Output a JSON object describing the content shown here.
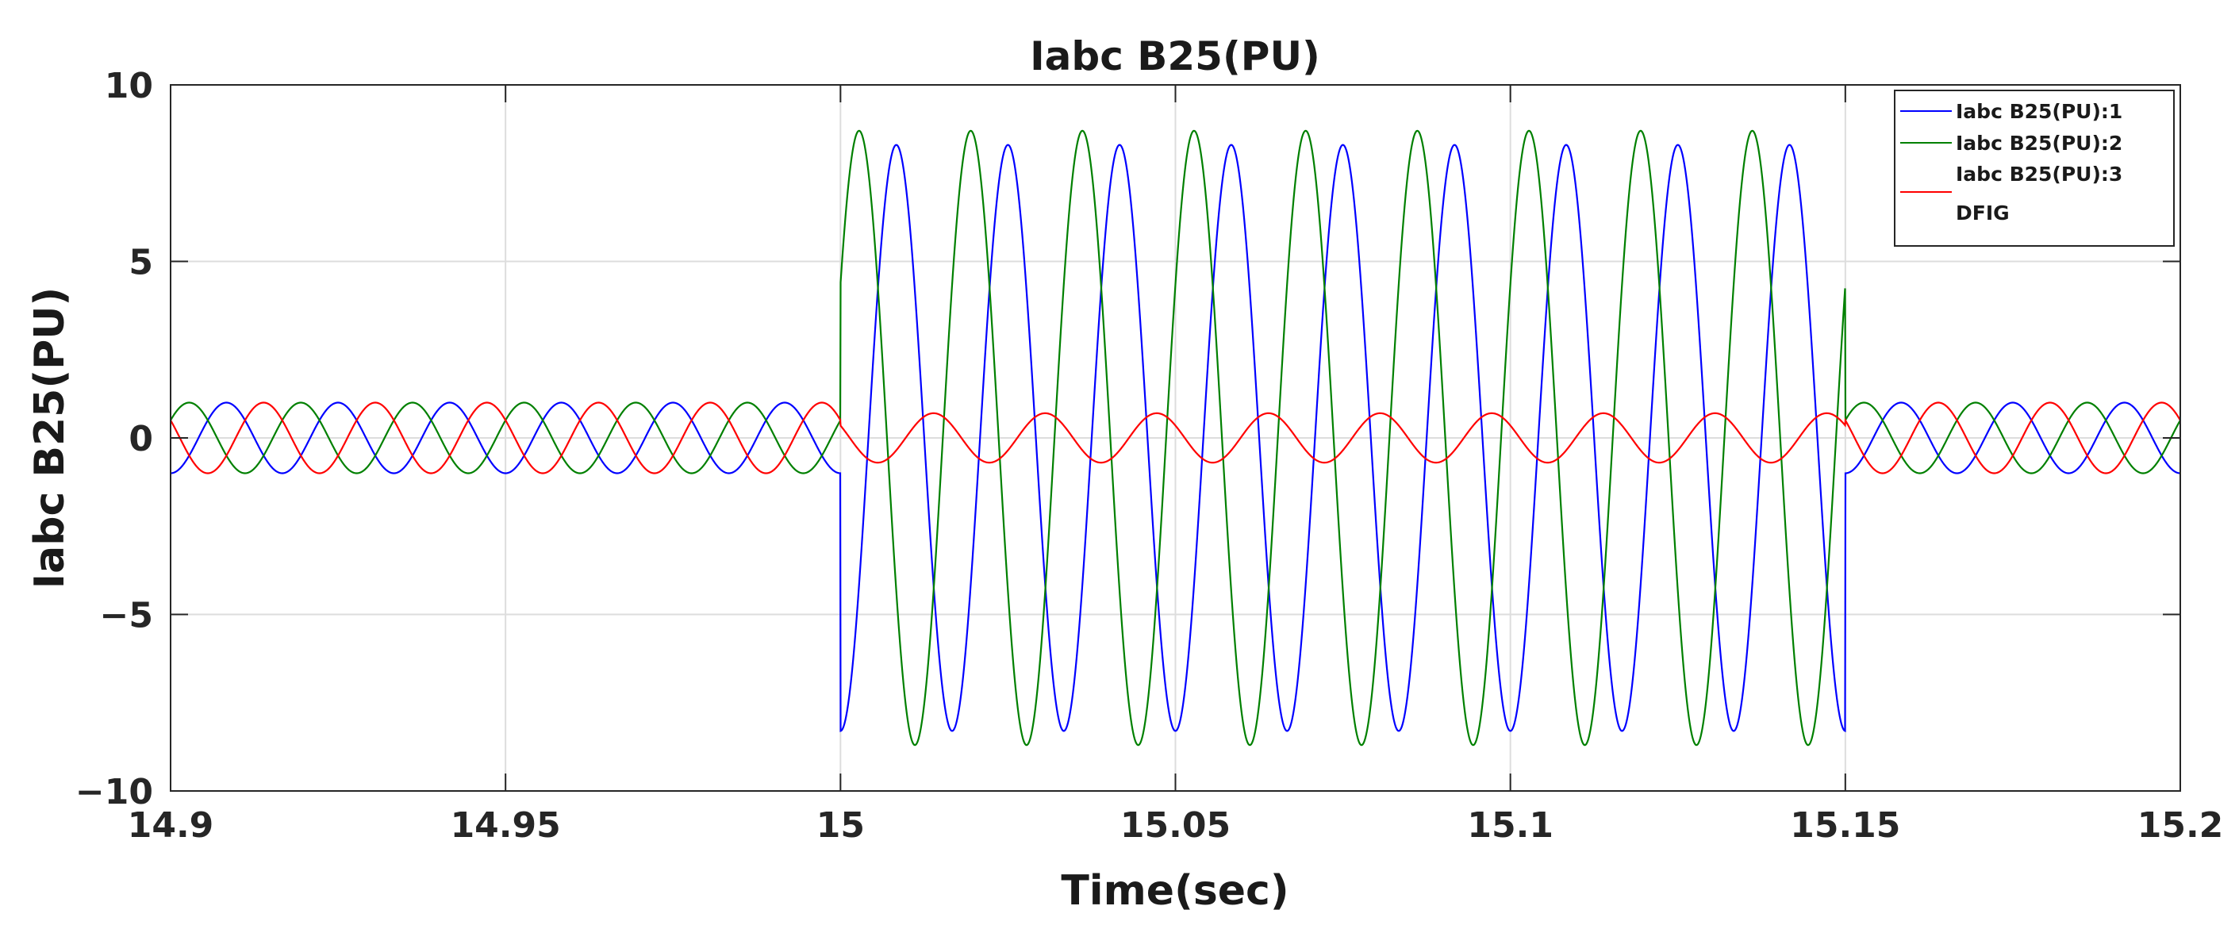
{
  "chart_data": {
    "type": "line",
    "title": "Iabc B25(PU)",
    "xlabel": "Time(sec)",
    "ylabel": "Iabc B25(PU)",
    "xlim": [
      14.9,
      15.2
    ],
    "ylim": [
      -10,
      10
    ],
    "xticks": [
      14.9,
      14.95,
      15.0,
      15.05,
      15.1,
      15.15,
      15.2
    ],
    "xtick_labels": [
      "14.9",
      "14.95",
      "15",
      "15.05",
      "15.1",
      "15.15",
      "15.2"
    ],
    "yticks": [
      -10,
      -5,
      0,
      5,
      10
    ],
    "ytick_labels": [
      "−10",
      "−5",
      "0",
      "5",
      "10"
    ],
    "grid": true,
    "legend_position": "top-right",
    "legend_extra_text": "DFIG",
    "frequency_hz": 60,
    "fault_interval": [
      15.0,
      15.15
    ],
    "series": [
      {
        "name": "Iabc B25(PU):1",
        "color": "#0000ff",
        "phase_deg": -90,
        "amplitude_normal": 1.0,
        "amplitude_fault": 8.3
      },
      {
        "name": "Iabc B25(PU):2",
        "color": "#008000",
        "phase_deg": 30,
        "amplitude_normal": 1.0,
        "amplitude_fault": 8.7
      },
      {
        "name": "Iabc B25(PU):3",
        "color": "#ff0000",
        "phase_deg": 150,
        "amplitude_normal": 1.0,
        "amplitude_fault": 0.7
      }
    ]
  }
}
